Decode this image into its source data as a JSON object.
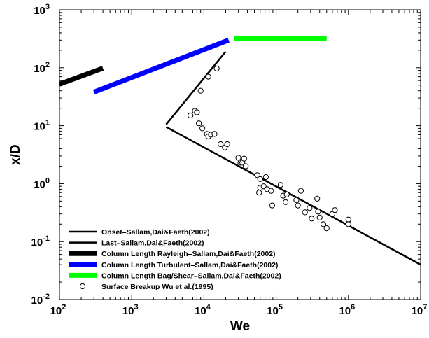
{
  "chart_data": {
    "type": "line",
    "xlabel": "We",
    "ylabel": "x/D",
    "xscale": "log",
    "yscale": "log",
    "xlim": [
      100,
      10000000
    ],
    "ylim": [
      0.01,
      1000
    ],
    "x_ticks": [
      {
        "base": "10",
        "exp": "2",
        "value": 100
      },
      {
        "base": "10",
        "exp": "3",
        "value": 1000
      },
      {
        "base": "10",
        "exp": "4",
        "value": 10000
      },
      {
        "base": "10",
        "exp": "5",
        "value": 100000
      },
      {
        "base": "10",
        "exp": "6",
        "value": 1000000
      },
      {
        "base": "10",
        "exp": "7",
        "value": 10000000
      }
    ],
    "y_ticks": [
      {
        "base": "10",
        "exp": "-2",
        "value": 0.01
      },
      {
        "base": "10",
        "exp": "-1",
        "value": 0.1
      },
      {
        "base": "10",
        "exp": "",
        "value": 1,
        "plain": "10",
        "suffix": "0",
        "label": "10⁰"
      },
      {
        "base": "10",
        "exp": "1",
        "value": 10
      },
      {
        "base": "10",
        "exp": "2",
        "value": 100
      },
      {
        "base": "10",
        "exp": "3",
        "value": 1000
      }
    ],
    "legend_position": "bottom-left",
    "series": [
      {
        "name": "Onset–Sallam,Dai&Faeth(2002)",
        "kind": "line",
        "color": "#000000",
        "width": 2.5,
        "points": [
          [
            3000,
            9.5
          ],
          [
            10000000,
            0.04
          ]
        ]
      },
      {
        "name": "Last–Sallam,Dai&Faeth(2002)",
        "kind": "line",
        "color": "#000000",
        "width": 2.5,
        "points": [
          [
            3000,
            10.5
          ],
          [
            20000,
            190
          ]
        ]
      },
      {
        "name": "Column Length Rayleigh–Sallam,Dai&Faeth(2002)",
        "kind": "line",
        "color": "#000000",
        "width": 7,
        "points": [
          [
            100,
            52
          ],
          [
            400,
            98
          ]
        ]
      },
      {
        "name": "Column Length Turbulent–Sallam,Dai&Faeth(2002)",
        "kind": "line",
        "color": "#0000ff",
        "width": 7,
        "points": [
          [
            300,
            38
          ],
          [
            22000,
            300
          ]
        ]
      },
      {
        "name": "Column Length Bag/Shear–Sallam,Dai&Faeth(2002)",
        "kind": "line",
        "color": "#00ff00",
        "width": 7,
        "points": [
          [
            26000,
            320
          ],
          [
            500000,
            320
          ]
        ]
      },
      {
        "name": "Surface Breakup Wu et al.(1995)",
        "kind": "scatter",
        "color": "#000000",
        "points": [
          [
            6500,
            15
          ],
          [
            7500,
            18
          ],
          [
            8000,
            17
          ],
          [
            8500,
            11
          ],
          [
            9500,
            9
          ],
          [
            11000,
            7.2
          ],
          [
            11500,
            6.5
          ],
          [
            12500,
            7.0
          ],
          [
            14000,
            7.2
          ],
          [
            9000,
            40
          ],
          [
            11500,
            70
          ],
          [
            15000,
            97
          ],
          [
            17000,
            4.8
          ],
          [
            19500,
            4.2
          ],
          [
            21000,
            4.8
          ],
          [
            30000,
            2.8
          ],
          [
            32000,
            2.3
          ],
          [
            34000,
            2.3
          ],
          [
            36000,
            2.7
          ],
          [
            38000,
            2.0
          ],
          [
            55000,
            1.4
          ],
          [
            60000,
            1.2
          ],
          [
            60000,
            0.85
          ],
          [
            58000,
            0.7
          ],
          [
            67000,
            0.9
          ],
          [
            72000,
            1.3
          ],
          [
            75000,
            0.8
          ],
          [
            85000,
            0.75
          ],
          [
            88000,
            0.42
          ],
          [
            115000,
            0.95
          ],
          [
            125000,
            0.62
          ],
          [
            135000,
            0.48
          ],
          [
            140000,
            0.65
          ],
          [
            190000,
            0.52
          ],
          [
            200000,
            0.42
          ],
          [
            220000,
            0.75
          ],
          [
            250000,
            0.32
          ],
          [
            290000,
            0.38
          ],
          [
            310000,
            0.25
          ],
          [
            370000,
            0.55
          ],
          [
            380000,
            0.33
          ],
          [
            400000,
            0.26
          ],
          [
            450000,
            0.2
          ],
          [
            500000,
            0.17
          ],
          [
            600000,
            0.3
          ],
          [
            650000,
            0.35
          ],
          [
            1000000,
            0.24
          ],
          [
            1000000,
            0.2
          ]
        ]
      }
    ]
  }
}
